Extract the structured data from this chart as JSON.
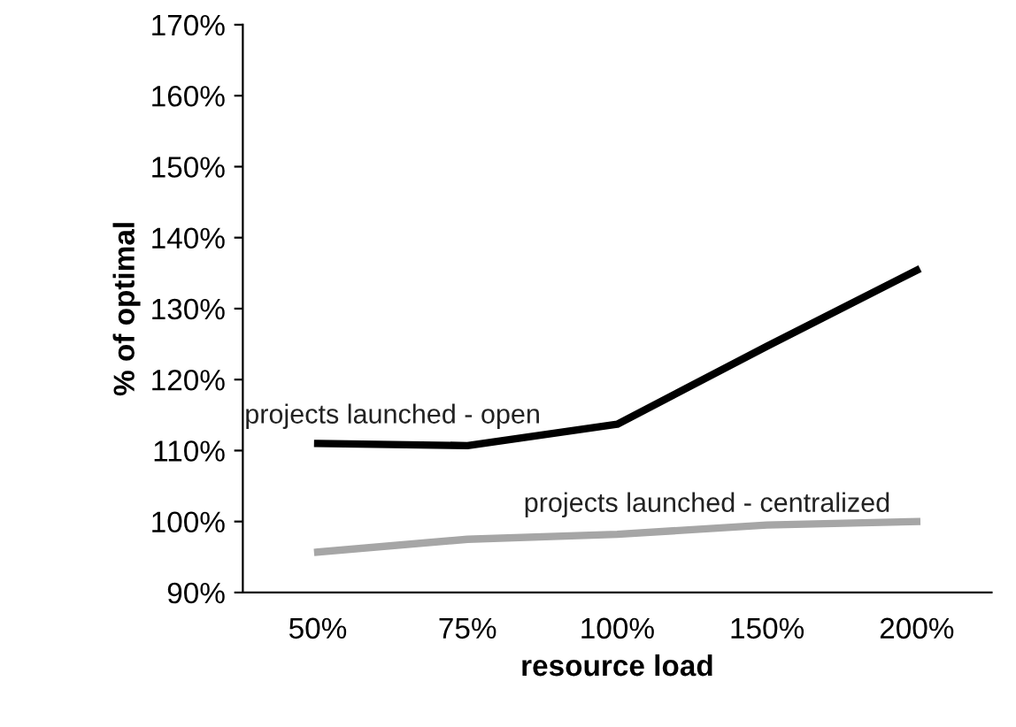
{
  "chart_data": {
    "type": "line",
    "xlabel": "resource load",
    "ylabel": "% of optimal",
    "categories": [
      "50%",
      "75%",
      "100%",
      "150%",
      "200%"
    ],
    "series": [
      {
        "name": "projects launched - open",
        "color": "#000000",
        "values": [
          111,
          110.7,
          113.7,
          124.7,
          135.4
        ]
      },
      {
        "name": "projects launched - centralized",
        "color": "#a6a6a6",
        "values": [
          95.7,
          97.5,
          98.2,
          99.5,
          100
        ]
      }
    ],
    "ylim": [
      90,
      170
    ],
    "yticks": [
      {
        "value": 90,
        "label": "90%"
      },
      {
        "value": 100,
        "label": "100%"
      },
      {
        "value": 110,
        "label": "110%"
      },
      {
        "value": 120,
        "label": "120%"
      },
      {
        "value": 130,
        "label": "130%"
      },
      {
        "value": 140,
        "label": "140%"
      },
      {
        "value": 150,
        "label": "150%"
      },
      {
        "value": 160,
        "label": "160%"
      },
      {
        "value": 170,
        "label": "170%"
      }
    ],
    "grid": false,
    "legend": false,
    "marker": "none",
    "line_style": "solid"
  }
}
